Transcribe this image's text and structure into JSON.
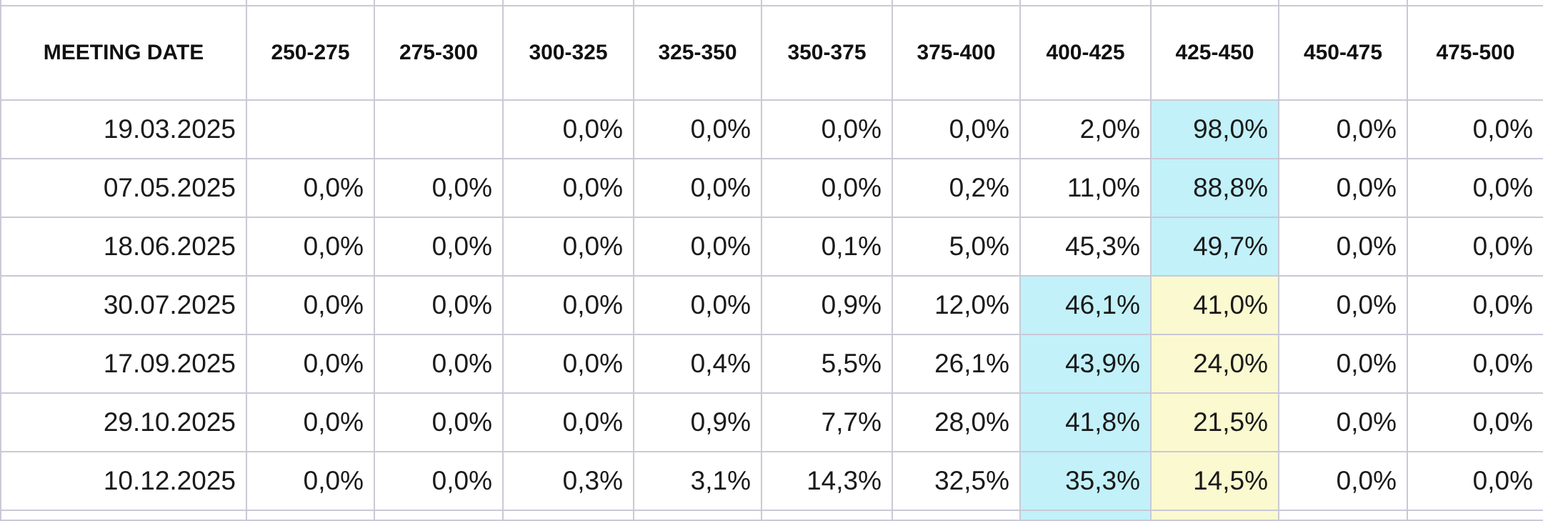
{
  "table": {
    "columns": [
      "MEETING DATE",
      "250-275",
      "275-300",
      "300-325",
      "325-350",
      "350-375",
      "375-400",
      "400-425",
      "425-450",
      "450-475",
      "475-500"
    ],
    "rows": [
      [
        "19.03.2025",
        null,
        null,
        "0,0%",
        "0,0%",
        "0,0%",
        "0,0%",
        "2,0%",
        "98,0%",
        "0,0%",
        "0,0%"
      ],
      [
        "07.05.2025",
        "0,0%",
        "0,0%",
        "0,0%",
        "0,0%",
        "0,0%",
        "0,2%",
        "11,0%",
        "88,8%",
        "0,0%",
        "0,0%"
      ],
      [
        "18.06.2025",
        "0,0%",
        "0,0%",
        "0,0%",
        "0,0%",
        "0,1%",
        "5,0%",
        "45,3%",
        "49,7%",
        "0,0%",
        "0,0%"
      ],
      [
        "30.07.2025",
        "0,0%",
        "0,0%",
        "0,0%",
        "0,0%",
        "0,9%",
        "12,0%",
        "46,1%",
        "41,0%",
        "0,0%",
        "0,0%"
      ],
      [
        "17.09.2025",
        "0,0%",
        "0,0%",
        "0,0%",
        "0,4%",
        "5,5%",
        "26,1%",
        "43,9%",
        "24,0%",
        "0,0%",
        "0,0%"
      ],
      [
        "29.10.2025",
        "0,0%",
        "0,0%",
        "0,0%",
        "0,9%",
        "7,7%",
        "28,0%",
        "41,8%",
        "21,5%",
        "0,0%",
        "0,0%"
      ],
      [
        "10.12.2025",
        "0,0%",
        "0,0%",
        "0,3%",
        "3,1%",
        "14,3%",
        "32,5%",
        "35,3%",
        "14,5%",
        "0,0%",
        "0,0%"
      ]
    ]
  }
}
